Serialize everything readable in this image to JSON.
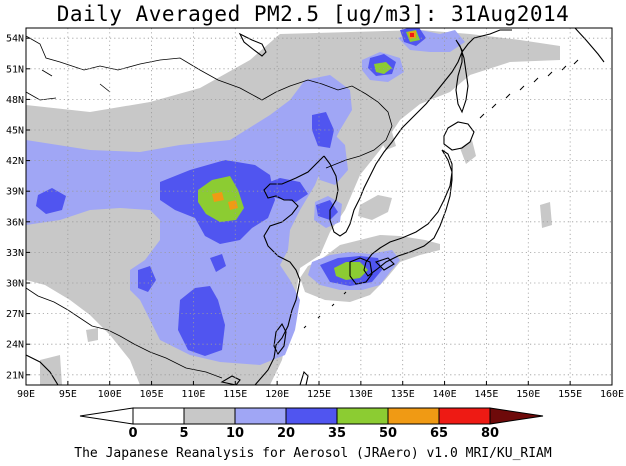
{
  "title": "Daily Averaged PM2.5 [ug/m3]: 31Aug2014",
  "credit": "The Japanese Reanalysis for Aerosol (JRAero) v1.0 MRI/KU_RIAM",
  "map": {
    "lon_range": [
      90,
      160
    ],
    "lat_range": [
      20,
      55
    ],
    "lon_ticks": [
      "90E",
      "95E",
      "100E",
      "105E",
      "110E",
      "115E",
      "120E",
      "125E",
      "130E",
      "135E",
      "140E",
      "145E",
      "150E",
      "155E",
      "160E"
    ],
    "lat_ticks": [
      "21N",
      "24N",
      "27N",
      "30N",
      "33N",
      "36N",
      "39N",
      "42N",
      "45N",
      "48N",
      "51N",
      "54N"
    ],
    "colors": {
      "bin_0_5": "#ffffff",
      "bin_5_10": "#c8c8c8",
      "bin_10_20": "#a0a6f5",
      "bin_20_35": "#5055f0",
      "bin_35_50": "#8ccc32",
      "bin_50_65": "#f09a14",
      "bin_65_80": "#ee1a14",
      "bin_80_plus": "#6e0a0a"
    }
  },
  "colorbar": {
    "labels": [
      "0",
      "5",
      "10",
      "20",
      "35",
      "50",
      "65",
      "80"
    ]
  }
}
